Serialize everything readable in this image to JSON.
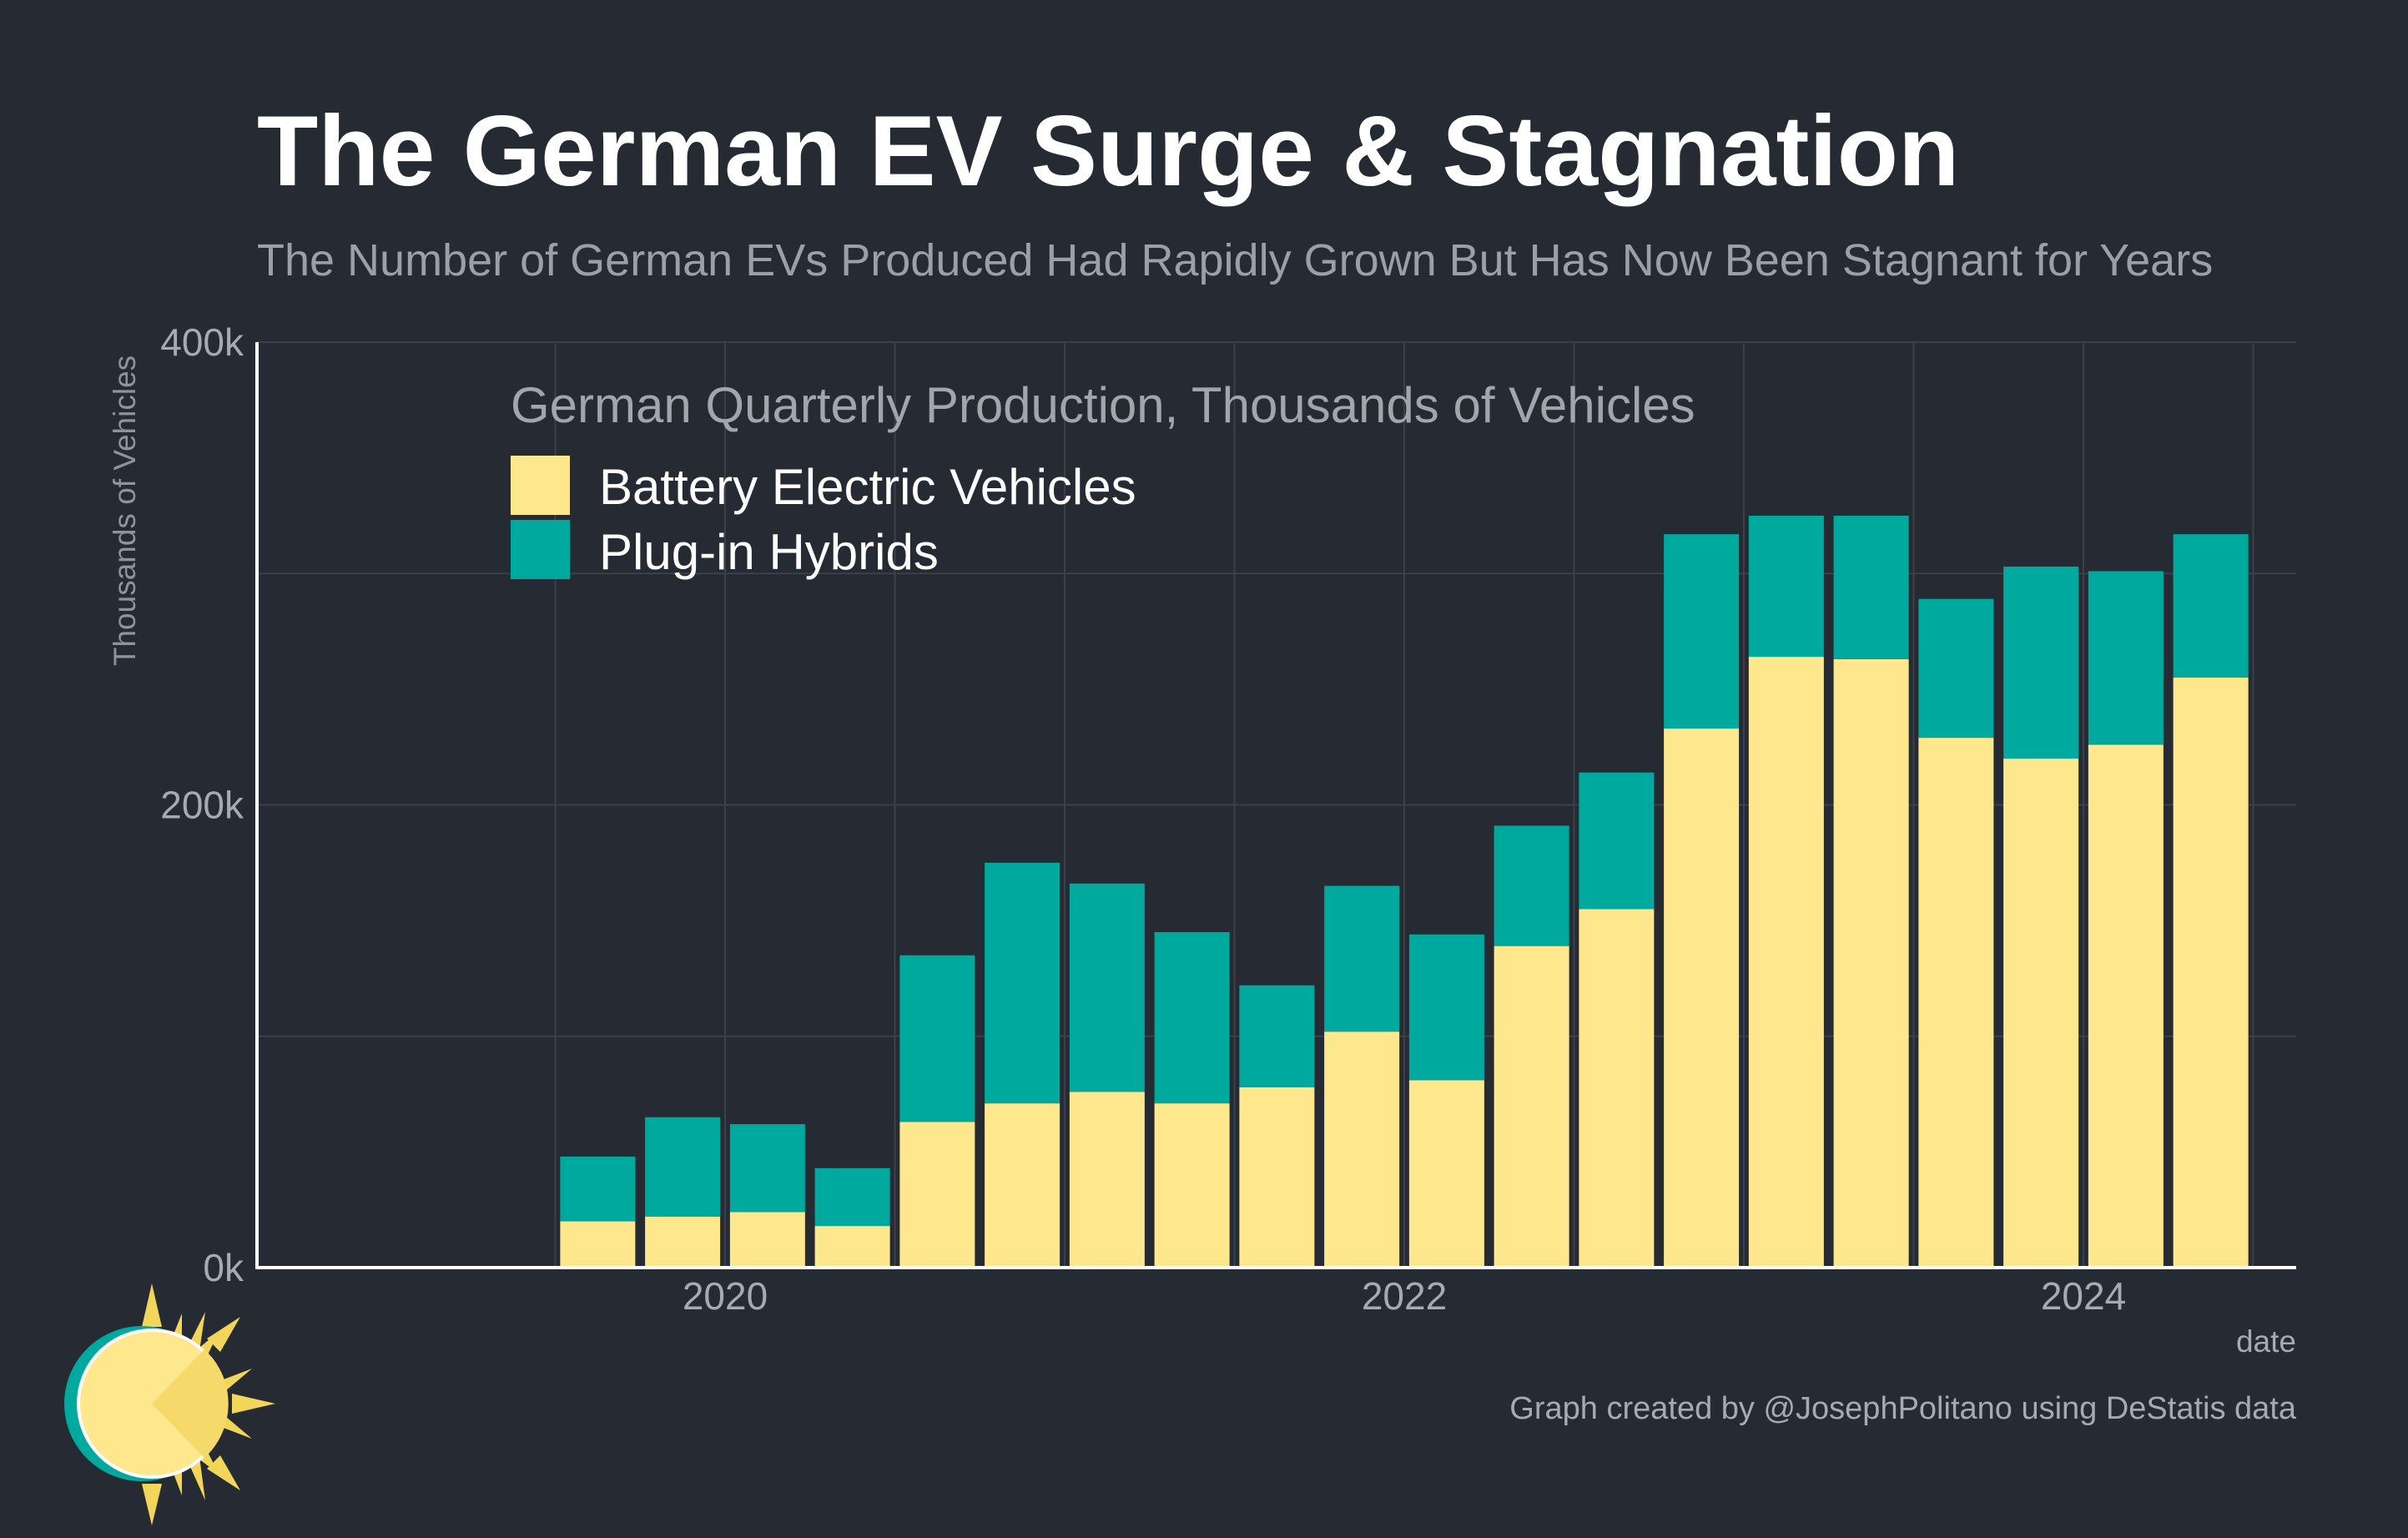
{
  "chart_data": {
    "type": "bar",
    "stacked": true,
    "title": "The German EV Surge & Stagnation",
    "subtitle": "The Number of German EVs Produced Had Rapidly Grown But Has Now Been Stagnant for Years",
    "ylabel": "Thousands of Vehicles",
    "xlabel": "date",
    "ylim": [
      0,
      400
    ],
    "yticks": [
      0,
      200,
      400
    ],
    "ytick_labels": [
      "0k",
      "200k",
      "400k"
    ],
    "xtick_labels": [
      "2020",
      "2022",
      "2024"
    ],
    "categories": [
      "2019 Q3",
      "2019 Q4",
      "2020 Q1",
      "2020 Q2",
      "2020 Q3",
      "2020 Q4",
      "2021 Q1",
      "2021 Q2",
      "2021 Q3",
      "2021 Q4",
      "2022 Q1",
      "2022 Q2",
      "2022 Q3",
      "2022 Q4",
      "2023 Q1",
      "2023 Q2",
      "2023 Q3",
      "2023 Q4",
      "2024 Q1",
      "2024 Q2"
    ],
    "series": [
      {
        "name": "Battery Electric Vehicles",
        "color": "#ffe78d",
        "values": [
          20,
          22,
          24,
          18,
          63,
          71,
          76,
          71,
          78,
          102,
          81,
          139,
          155,
          233,
          264,
          263,
          229,
          220,
          226,
          255
        ]
      },
      {
        "name": "Plug-in Hybrids",
        "color": "#00a99d",
        "values": [
          28,
          43,
          38,
          25,
          72,
          104,
          90,
          74,
          44,
          63,
          63,
          52,
          59,
          84,
          61,
          62,
          60,
          83,
          75,
          62
        ]
      }
    ],
    "legend": {
      "title": "German Quarterly Production, Thousands of Vehicles",
      "position": "top-left"
    },
    "grid": true,
    "caption": "Graph created by @JosephPolitano using DeStatis data",
    "colors": {
      "background": "#252a33",
      "grid": "#3b404a",
      "axis": "#ffffff"
    }
  }
}
